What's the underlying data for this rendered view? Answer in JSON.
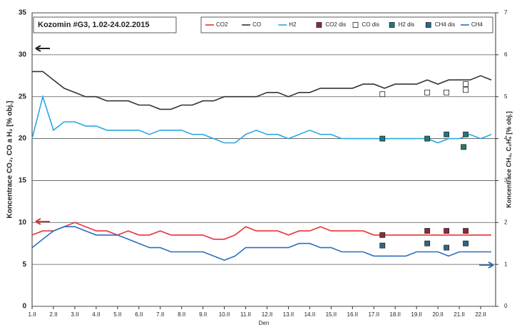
{
  "chart_data": {
    "type": "line",
    "title": "Kozomin #G3, 1.02-24.02.2015",
    "x_label": "Den",
    "y_label": "Koncentrace CO₂, CO a H₂ [% obj.]",
    "y2_label": "Koncentrace CH₄, C₂H₆ [% obj.]",
    "xlim": [
      1,
      22.7
    ],
    "xticks": [
      {
        "value": 1,
        "label": "1.II"
      },
      {
        "value": 2,
        "label": "2.II"
      },
      {
        "value": 3,
        "label": "3.II"
      },
      {
        "value": 4,
        "label": "4.II"
      },
      {
        "value": 5,
        "label": "5.II"
      },
      {
        "value": 6,
        "label": "6.II"
      },
      {
        "value": 7,
        "label": "7.II"
      },
      {
        "value": 8,
        "label": "8.II"
      },
      {
        "value": 9,
        "label": "9.II"
      },
      {
        "value": 10,
        "label": "10.II"
      },
      {
        "value": 11,
        "label": "11.II"
      },
      {
        "value": 12,
        "label": "12.II"
      },
      {
        "value": 13,
        "label": "13.II"
      },
      {
        "value": 14,
        "label": "14.II"
      },
      {
        "value": 15,
        "label": "15.II"
      },
      {
        "value": 16,
        "label": "16.II"
      },
      {
        "value": 17,
        "label": "17.II"
      },
      {
        "value": 18,
        "label": "18.II"
      },
      {
        "value": 19,
        "label": "19.II"
      },
      {
        "value": 20,
        "label": "20.II"
      },
      {
        "value": 21,
        "label": "21.II"
      },
      {
        "value": 22,
        "label": "22.II"
      }
    ],
    "ylim": [
      0,
      35
    ],
    "yticks": [
      0,
      5,
      10,
      15,
      20,
      25,
      30,
      35
    ],
    "y2lim": [
      0,
      7
    ],
    "y2ticks": [
      0,
      1,
      2,
      3,
      4,
      5,
      6,
      7
    ],
    "grid": true,
    "x": [
      1,
      1.5,
      2,
      2.5,
      3,
      3.5,
      4,
      4.5,
      5,
      5.5,
      6,
      6.5,
      7,
      7.5,
      8,
      8.5,
      9,
      9.5,
      10,
      10.5,
      11,
      11.5,
      12,
      12.5,
      13,
      13.5,
      14,
      14.5,
      15,
      15.5,
      16,
      16.5,
      17,
      17.5,
      18,
      18.5,
      19,
      19.5,
      20,
      20.5,
      21,
      21.5,
      22,
      22.5
    ],
    "series": [
      {
        "name": "CO2",
        "style": "line",
        "color": "#e8323c",
        "values": [
          8.5,
          9,
          9,
          9.5,
          10,
          9.5,
          9,
          9,
          8.5,
          9,
          8.5,
          8.5,
          9,
          8.5,
          8.5,
          8.5,
          8.5,
          8,
          8,
          8.5,
          9.5,
          9,
          9,
          9,
          8.5,
          9,
          9,
          9.5,
          9,
          9,
          9,
          9,
          8.5,
          8.5,
          8.5,
          8.5,
          8.5,
          8.5,
          8.5,
          8.5,
          8.5,
          8.5,
          8.5,
          8.5
        ]
      },
      {
        "name": "CO",
        "style": "line",
        "color": "#333333",
        "values": [
          28,
          28,
          27,
          26,
          25.5,
          25,
          25,
          24.5,
          24.5,
          24.5,
          24,
          24,
          23.5,
          23.5,
          24,
          24,
          24.5,
          24.5,
          25,
          25,
          25,
          25,
          25.5,
          25.5,
          25,
          25.5,
          25.5,
          26,
          26,
          26,
          26,
          26.5,
          26.5,
          26,
          26.5,
          26.5,
          26.5,
          27,
          26.5,
          27,
          27,
          27,
          27.5,
          27
        ]
      },
      {
        "name": "H2",
        "style": "line",
        "color": "#29a8e0",
        "values": [
          20,
          25,
          21,
          22,
          22,
          21.5,
          21.5,
          21,
          21,
          21,
          21,
          20.5,
          21,
          21,
          21,
          20.5,
          20.5,
          20,
          19.5,
          19.5,
          20.5,
          21,
          20.5,
          20.5,
          20,
          20.5,
          21,
          20.5,
          20.5,
          20,
          20,
          20,
          20,
          20,
          20,
          20,
          20,
          20,
          19.5,
          20,
          20,
          20.5,
          20,
          20.5
        ]
      },
      {
        "name": "CO2 dis",
        "style": "markers",
        "color": "#8b2b3a",
        "x": [
          17.4,
          19.5,
          20.4,
          21.3
        ],
        "values": [
          8.5,
          9,
          9,
          9
        ]
      },
      {
        "name": "CO dis",
        "style": "markers",
        "color": "#ffffff",
        "x": [
          17.4,
          19.5,
          20.4,
          21.3,
          21.3
        ],
        "values": [
          25.3,
          25.5,
          25.5,
          26.5,
          25.8
        ]
      },
      {
        "name": "H2 dis",
        "style": "markers",
        "color": "#1f7a7a",
        "x": [
          17.4,
          19.5,
          20.4,
          21.3,
          21.2
        ],
        "values": [
          20,
          20,
          20.5,
          20.5,
          19
        ]
      },
      {
        "name": "CH4 dis",
        "style": "markers",
        "color": "#2a6a8a",
        "axis": "y2",
        "x": [
          17.4,
          19.5,
          20.4,
          21.3
        ],
        "values": [
          1.45,
          1.5,
          1.4,
          1.5
        ]
      },
      {
        "name": "CH4",
        "style": "line",
        "color": "#2a6fc0",
        "axis": "y2",
        "values": [
          1.4,
          1.6,
          1.8,
          1.9,
          1.9,
          1.8,
          1.7,
          1.7,
          1.7,
          1.6,
          1.5,
          1.4,
          1.4,
          1.3,
          1.3,
          1.3,
          1.3,
          1.2,
          1.1,
          1.2,
          1.4,
          1.4,
          1.4,
          1.4,
          1.4,
          1.5,
          1.5,
          1.4,
          1.4,
          1.3,
          1.3,
          1.3,
          1.2,
          1.2,
          1.2,
          1.2,
          1.3,
          1.3,
          1.3,
          1.2,
          1.3,
          1.3,
          1.3,
          1.3
        ]
      }
    ]
  }
}
